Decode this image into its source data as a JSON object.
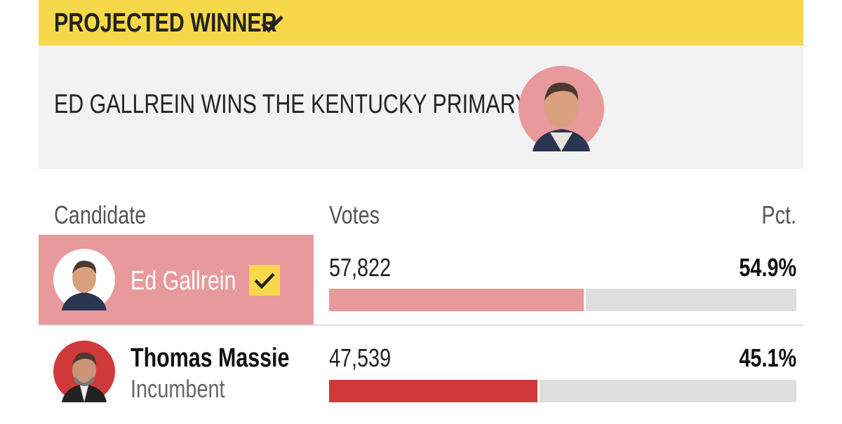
{
  "banner": {
    "label": "PROJECTED WINNER",
    "headline": "ED GALLREIN WINS THE KENTUCKY PRIMARY"
  },
  "table": {
    "columns": [
      "Candidate",
      "Votes",
      "Pct."
    ],
    "rows": [
      {
        "name": "Ed Gallrein",
        "votes": "57,822",
        "pct": 54.9,
        "pct_label": "54.9%",
        "winner": true,
        "color": "#e8999b"
      },
      {
        "name": "Thomas Massie",
        "note": "Incumbent",
        "votes": "47,539",
        "pct": 45.1,
        "pct_label": "45.1%",
        "winner": false,
        "color": "#d0393a"
      }
    ]
  }
}
